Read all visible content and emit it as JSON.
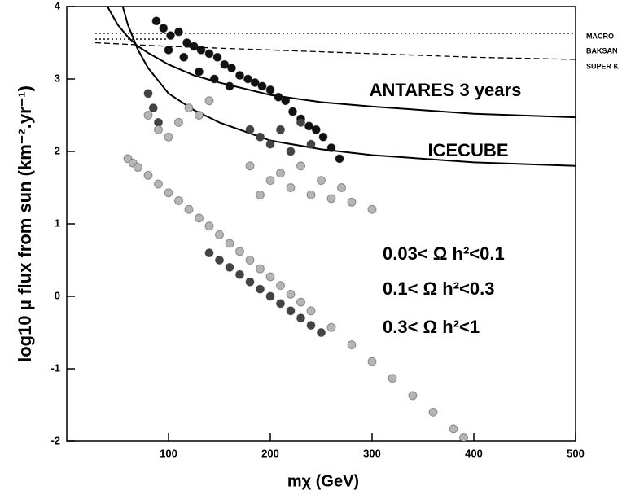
{
  "chart_data": {
    "type": "scatter",
    "x_label": "mχ (GeV)",
    "y_label": "log10 μ flux from sun (km⁻².yr⁻¹)",
    "xlim": [
      0,
      500
    ],
    "ylim": [
      -2,
      4
    ],
    "xticks": [
      100,
      200,
      300,
      400,
      500
    ],
    "yticks": [
      -2,
      -1,
      0,
      1,
      2,
      3,
      4
    ],
    "series": [
      {
        "name": "0.03< Ω h²<0.1",
        "color": "#111111",
        "x": [
          88,
          95,
          102,
          110,
          118,
          125,
          132,
          140,
          148,
          155,
          162,
          170,
          178,
          185,
          192,
          200,
          208,
          215,
          222,
          230,
          238,
          245,
          252,
          260,
          268,
          100,
          115,
          130,
          145,
          160
        ],
        "y": [
          3.8,
          3.7,
          3.6,
          3.65,
          3.5,
          3.45,
          3.4,
          3.35,
          3.3,
          3.2,
          3.15,
          3.05,
          3.0,
          2.95,
          2.9,
          2.85,
          2.75,
          2.7,
          2.55,
          2.45,
          2.35,
          2.3,
          2.2,
          2.05,
          1.9,
          3.4,
          3.3,
          3.1,
          3.0,
          2.9
        ]
      },
      {
        "name": "0.1< Ω h²<0.3",
        "color": "#444444",
        "x": [
          80,
          85,
          90,
          180,
          190,
          200,
          210,
          220,
          230,
          240,
          140,
          150,
          160,
          170,
          180,
          190,
          200,
          210,
          220,
          230,
          240,
          250
        ],
        "y": [
          2.8,
          2.6,
          2.4,
          2.3,
          2.2,
          2.1,
          2.3,
          2.0,
          2.4,
          2.1,
          0.6,
          0.5,
          0.4,
          0.3,
          0.2,
          0.1,
          0.0,
          -0.1,
          -0.2,
          -0.3,
          -0.4,
          -0.5
        ]
      },
      {
        "name": "0.3< Ω h²<1",
        "color": "#b5b5b5",
        "x": [
          60,
          65,
          70,
          80,
          90,
          100,
          110,
          120,
          130,
          140,
          150,
          160,
          170,
          180,
          190,
          200,
          210,
          220,
          230,
          240,
          260,
          280,
          300,
          320,
          340,
          360,
          380,
          390,
          80,
          90,
          100,
          110,
          120,
          130,
          140,
          180,
          200,
          220,
          240,
          260,
          280,
          300,
          190,
          210,
          230,
          250,
          270
        ],
        "y": [
          1.9,
          1.84,
          1.78,
          1.67,
          1.55,
          1.43,
          1.32,
          1.2,
          1.08,
          0.97,
          0.85,
          0.73,
          0.62,
          0.5,
          0.38,
          0.27,
          0.15,
          0.03,
          -0.08,
          -0.2,
          -0.43,
          -0.67,
          -0.9,
          -1.13,
          -1.37,
          -1.6,
          -1.83,
          -1.95,
          2.5,
          2.3,
          2.2,
          2.4,
          2.6,
          2.5,
          2.7,
          1.8,
          1.6,
          1.5,
          1.4,
          1.35,
          1.3,
          1.2,
          1.4,
          1.7,
          1.8,
          1.6,
          1.5
        ]
      }
    ],
    "lines": [
      {
        "name": "ANTARES 3 years",
        "style": "solid",
        "x": [
          40,
          50,
          60,
          70,
          80,
          100,
          125,
          150,
          200,
          250,
          300,
          400,
          500
        ],
        "y": [
          4,
          3.75,
          3.58,
          3.45,
          3.36,
          3.2,
          3.05,
          2.95,
          2.78,
          2.68,
          2.62,
          2.52,
          2.47
        ]
      },
      {
        "name": "ICECUBE",
        "style": "solid",
        "x": [
          55,
          60,
          70,
          80,
          100,
          125,
          150,
          200,
          250,
          300,
          400,
          500
        ],
        "y": [
          4,
          3.75,
          3.4,
          3.15,
          2.8,
          2.57,
          2.4,
          2.15,
          2.03,
          1.95,
          1.85,
          1.8
        ]
      },
      {
        "name": "MACRO",
        "style": "dotted",
        "x": [
          28,
          500
        ],
        "y": [
          3.63,
          3.63
        ]
      },
      {
        "name": "BAKSAN",
        "style": "dotted",
        "x": [
          28,
          100
        ],
        "y": [
          3.55,
          3.55
        ]
      },
      {
        "name": "SUPER K",
        "style": "dashed",
        "x": [
          28,
          100,
          200,
          300,
          400,
          500
        ],
        "y": [
          3.5,
          3.45,
          3.4,
          3.35,
          3.3,
          3.27
        ]
      }
    ]
  }
}
